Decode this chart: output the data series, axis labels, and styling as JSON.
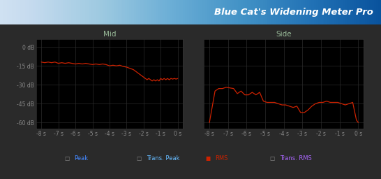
{
  "title": "Blue Cat's Widening Meter Pro",
  "mid_label": "Mid",
  "side_label": "Side",
  "outer_bg": "#2a2a2a",
  "inner_bg": "#1a1a1a",
  "header_gradient_top": "#1060a0",
  "header_gradient_bot": "#0a3060",
  "grid_color": "#2a2a2a",
  "plot_bg": "#000000",
  "yticks": [
    0,
    -15,
    -30,
    -45,
    -60
  ],
  "ytick_labels": [
    "0 dB",
    "-15 dB",
    "-30 dB",
    "-45 dB",
    "-60 dB"
  ],
  "xlim": [
    -8.3,
    0.3
  ],
  "ylim_min": -65,
  "ylim_max": 6,
  "xticks": [
    -8,
    -7,
    -6,
    -5,
    -4,
    -3,
    -2,
    -1,
    0
  ],
  "xtick_labels": [
    "-8 s",
    "-7 s",
    "-6 s",
    "-5 s",
    "-4 s",
    "-3 s",
    "-2 s",
    "-1 s",
    "0 s"
  ],
  "rms_color": "#cc2200",
  "legend_items": [
    {
      "label": "Peak",
      "color": "#4488ff",
      "filled": false
    },
    {
      "label": "Trans. Peak",
      "color": "#66bbff",
      "filled": false
    },
    {
      "label": "RMS",
      "color": "#cc2200",
      "filled": true
    },
    {
      "label": "Trans. RMS",
      "color": "#aa66ff",
      "filled": false
    }
  ],
  "mid_rms_x": [
    -8.0,
    -7.8,
    -7.6,
    -7.4,
    -7.2,
    -7.0,
    -6.8,
    -6.6,
    -6.4,
    -6.2,
    -6.0,
    -5.8,
    -5.6,
    -5.4,
    -5.2,
    -5.0,
    -4.8,
    -4.6,
    -4.4,
    -4.2,
    -4.0,
    -3.8,
    -3.6,
    -3.4,
    -3.2,
    -3.0,
    -2.8,
    -2.6,
    -2.4,
    -2.2,
    -2.0,
    -1.9,
    -1.8,
    -1.7,
    -1.6,
    -1.5,
    -1.4,
    -1.3,
    -1.2,
    -1.1,
    -1.0,
    -0.9,
    -0.8,
    -0.7,
    -0.6,
    -0.5,
    -0.4,
    -0.3,
    -0.2,
    -0.1,
    0.0
  ],
  "mid_rms_y": [
    -12.0,
    -12.5,
    -12.0,
    -12.5,
    -12.0,
    -13.0,
    -12.5,
    -13.0,
    -12.5,
    -13.0,
    -13.5,
    -13.0,
    -13.5,
    -13.0,
    -13.5,
    -14.0,
    -13.5,
    -14.0,
    -13.5,
    -14.0,
    -15.0,
    -14.5,
    -15.0,
    -14.5,
    -15.5,
    -16.0,
    -17.0,
    -18.0,
    -20.0,
    -22.0,
    -24.0,
    -25.0,
    -26.0,
    -25.0,
    -26.0,
    -27.0,
    -26.0,
    -27.0,
    -26.0,
    -27.0,
    -25.0,
    -26.0,
    -25.0,
    -26.0,
    -25.0,
    -26.0,
    -25.0,
    -25.5,
    -25.0,
    -25.5,
    -25.0
  ],
  "side_rms_x": [
    -8.0,
    -7.7,
    -7.5,
    -7.3,
    -7.1,
    -6.9,
    -6.7,
    -6.5,
    -6.3,
    -6.1,
    -5.9,
    -5.7,
    -5.5,
    -5.3,
    -5.1,
    -4.9,
    -4.7,
    -4.5,
    -4.3,
    -4.1,
    -3.9,
    -3.7,
    -3.5,
    -3.3,
    -3.1,
    -2.9,
    -2.7,
    -2.5,
    -2.3,
    -2.1,
    -1.9,
    -1.7,
    -1.5,
    -1.3,
    -1.1,
    -0.9,
    -0.7,
    -0.5,
    -0.3,
    -0.1,
    0.0
  ],
  "side_rms_y": [
    -60.0,
    -35.0,
    -33.0,
    -33.0,
    -32.0,
    -32.5,
    -33.0,
    -37.0,
    -35.0,
    -38.0,
    -38.0,
    -36.0,
    -38.0,
    -36.0,
    -43.0,
    -44.0,
    -44.0,
    -44.0,
    -45.0,
    -46.0,
    -46.0,
    -47.0,
    -48.0,
    -47.0,
    -52.0,
    -52.0,
    -50.0,
    -47.0,
    -45.0,
    -44.0,
    -44.0,
    -43.0,
    -44.0,
    -44.0,
    -44.0,
    -45.0,
    -46.0,
    -45.0,
    -44.0,
    -58.0,
    -60.0
  ]
}
